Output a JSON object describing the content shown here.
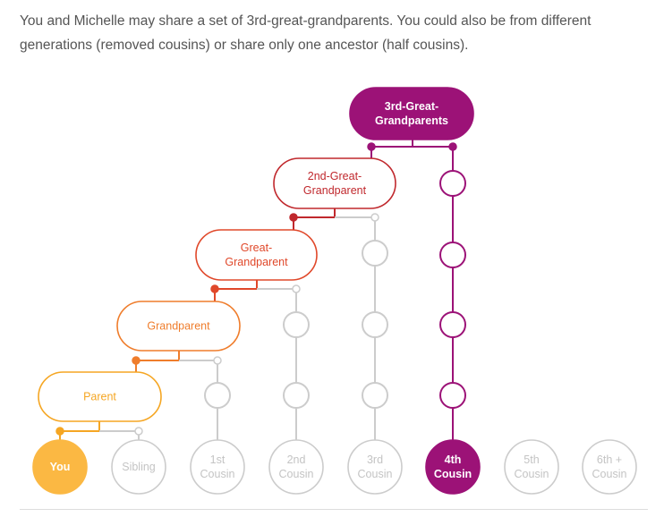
{
  "intro_text": "You and Michelle may share a set of 3rd-great-grandparents. You could also be from different generations (removed cousins) or share only one ancestor (half cousins).",
  "ancestors": [
    {
      "id": "3rd-great-grandparents",
      "lines": [
        "3rd-Great-",
        "Grandparents"
      ],
      "color": "#9c1277",
      "filled": true
    },
    {
      "id": "2nd-great-grandparent",
      "lines": [
        "2nd-Great-",
        "Grandparent"
      ],
      "color": "#c0282d",
      "filled": false
    },
    {
      "id": "great-grandparent",
      "lines": [
        "Great-",
        "Grandparent"
      ],
      "color": "#e0482a",
      "filled": false
    },
    {
      "id": "grandparent",
      "lines": [
        "Grandparent"
      ],
      "color": "#ef7d2c",
      "filled": false
    },
    {
      "id": "parent",
      "lines": [
        "Parent"
      ],
      "color": "#f5a623",
      "filled": false
    }
  ],
  "relatives": [
    {
      "id": "you",
      "lines": [
        "You"
      ],
      "fill": "#fbb843",
      "text_color": "#ffffff",
      "highlight": true
    },
    {
      "id": "sibling",
      "lines": [
        "Sibling"
      ],
      "fill": "none",
      "text_color": "#c4c4c4",
      "highlight": false
    },
    {
      "id": "1st-cousin",
      "lines": [
        "1st",
        "Cousin"
      ],
      "fill": "none",
      "text_color": "#c4c4c4",
      "highlight": false
    },
    {
      "id": "2nd-cousin",
      "lines": [
        "2nd",
        "Cousin"
      ],
      "fill": "none",
      "text_color": "#c4c4c4",
      "highlight": false
    },
    {
      "id": "3rd-cousin",
      "lines": [
        "3rd",
        "Cousin"
      ],
      "fill": "none",
      "text_color": "#c4c4c4",
      "highlight": false
    },
    {
      "id": "4th-cousin",
      "lines": [
        "4th",
        "Cousin"
      ],
      "fill": "#9c1277",
      "text_color": "#ffffff",
      "highlight": true
    },
    {
      "id": "5th-cousin",
      "lines": [
        "5th",
        "Cousin"
      ],
      "fill": "none",
      "text_color": "#c4c4c4",
      "highlight": false
    },
    {
      "id": "6th-plus-cousin",
      "lines": [
        "6th +",
        "Cousin"
      ],
      "fill": "none",
      "text_color": "#c4c4c4",
      "highlight": false
    }
  ],
  "colors": {
    "gray_line": "#cccccc",
    "magenta": "#9c1277"
  }
}
